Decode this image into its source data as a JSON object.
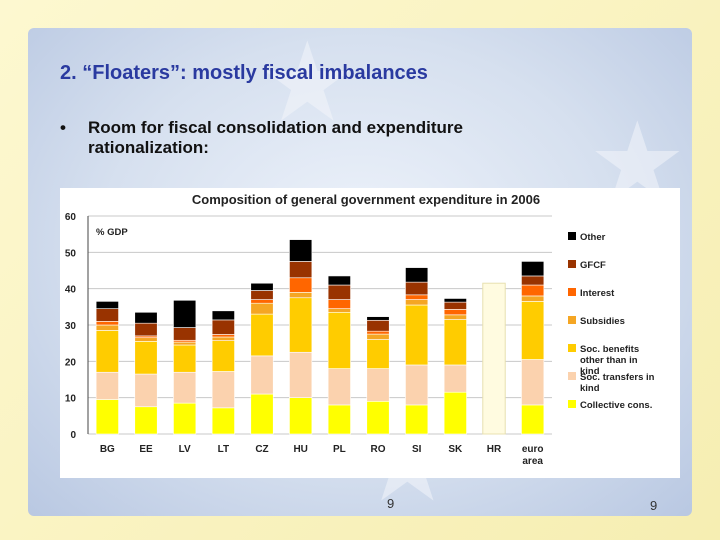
{
  "slide": {
    "title": "2. “Floaters”: mostly fiscal imbalances",
    "bullet": "Room for fiscal consolidation and expenditure rationalization:",
    "page_number_center": "9",
    "page_number_right": "9"
  },
  "chart_data": {
    "type": "bar",
    "stacked": true,
    "title": "Composition of general government expenditure in 2006",
    "ylabel": "% GDP",
    "ylim": [
      0,
      60
    ],
    "yticks": [
      0,
      10,
      20,
      30,
      40,
      50,
      60
    ],
    "grid": "horizontal",
    "legend_position": "right",
    "categories": [
      "BG",
      "EE",
      "LV",
      "LT",
      "CZ",
      "HU",
      "PL",
      "RO",
      "SI",
      "SK",
      "HR",
      "euro area"
    ],
    "series": [
      {
        "name": "Collective cons.",
        "color": "#ffff00",
        "values": [
          9.5,
          7.5,
          8.5,
          7.2,
          11,
          10,
          8,
          9,
          8,
          11.5,
          0,
          8
        ]
      },
      {
        "name": "Soc. transfers in kind",
        "color": "#fbd2ae",
        "values": [
          7.5,
          9,
          8.5,
          10,
          10.5,
          12.5,
          10,
          9,
          11,
          7.5,
          0,
          12.5
        ]
      },
      {
        "name": "Soc. benefits other than in kind",
        "color": "#ffcc00",
        "values": [
          11.5,
          9,
          7.5,
          8.5,
          11.5,
          15,
          15.5,
          8,
          16.5,
          12.5,
          0,
          16
        ]
      },
      {
        "name": "Subsidies",
        "color": "#f5a623",
        "values": [
          1.5,
          1,
          0.8,
          1,
          3,
          1.5,
          1,
          1.5,
          1.5,
          1.3,
          0,
          1.5
        ]
      },
      {
        "name": "Interest",
        "color": "#ff6600",
        "values": [
          1,
          0.5,
          0.5,
          0.7,
          1,
          4,
          2.5,
          0.8,
          1.3,
          1.5,
          0,
          3
        ]
      },
      {
        "name": "GFCF",
        "color": "#993300",
        "values": [
          3.5,
          3.5,
          3.5,
          4,
          2.5,
          4.5,
          4,
          3,
          3.5,
          2,
          0,
          2.5
        ]
      },
      {
        "name": "Other",
        "color": "#000000",
        "values": [
          2,
          3,
          7.5,
          2.5,
          2,
          6,
          2.5,
          1,
          4,
          1,
          0,
          4
        ]
      }
    ],
    "unstacked_total": {
      "category": "HR",
      "value": 41.5,
      "color": "#fffbe0"
    }
  }
}
